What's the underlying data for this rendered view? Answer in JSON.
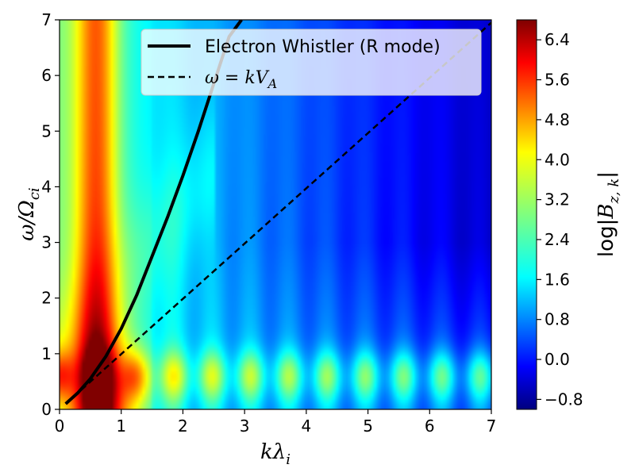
{
  "chart_data": {
    "type": "heatmap",
    "title": "",
    "xlabel": "kλ_i",
    "ylabel": "ω/Ω_ci",
    "xlim": [
      0,
      7
    ],
    "ylim": [
      0,
      7
    ],
    "x_ticks": [
      0,
      1,
      2,
      3,
      4,
      5,
      6,
      7
    ],
    "y_ticks": [
      0,
      1,
      2,
      3,
      4,
      5,
      6,
      7
    ],
    "colormap": "jet",
    "colorbar": {
      "label": "log|B_z,k|",
      "range": [
        -1.0,
        6.8
      ],
      "ticks": [
        -0.8,
        0.0,
        0.8,
        1.6,
        2.4,
        3.2,
        4.0,
        4.8,
        5.6,
        6.4
      ],
      "tick_labels": [
        "−0.8",
        "0.0",
        "0.8",
        "1.6",
        "2.4",
        "3.2",
        "4.0",
        "4.8",
        "5.6",
        "6.4"
      ]
    },
    "heatmap_description": "Spectral power of B_z in (k, ω) space: strong power (≈5–6.8) near kλ_i≈0.4–1.3, ω/Ω_ci<1.5; bright ridge near kλ_i≈0.6 extending to ω/Ω_ci=7; low-frequency band ω/Ω_ci≈0.6 across all k with periodic maxima every ≈0.6 in kλ_i; low power (≈−0.8 to 0.4) at high k and high ω.",
    "series": [
      {
        "name": "Electron Whistler (R mode)",
        "style": "solid",
        "color": "#000000",
        "x": [
          0.1,
          0.3,
          0.5,
          0.75,
          1.0,
          1.25,
          1.5,
          1.75,
          2.0,
          2.25,
          2.5,
          2.75,
          2.95
        ],
        "y": [
          0.1,
          0.3,
          0.55,
          0.95,
          1.45,
          2.05,
          2.75,
          3.45,
          4.2,
          5.0,
          5.85,
          6.7,
          7.0
        ]
      },
      {
        "name": "ω = kV_A",
        "style": "dashed",
        "color": "#000000",
        "x": [
          0.1,
          7.0
        ],
        "y": [
          0.1,
          6.95
        ]
      }
    ],
    "legend": {
      "location": "top-right",
      "entries": [
        "Electron Whistler (R mode)",
        "ω = kV_A"
      ]
    }
  }
}
